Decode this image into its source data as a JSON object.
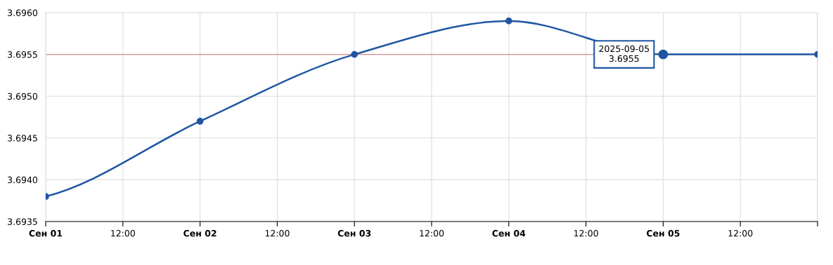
{
  "chart_data": {
    "type": "line",
    "x": [
      "2025-09-01",
      "2025-09-02",
      "2025-09-03",
      "2025-09-04",
      "2025-09-05",
      "2025-09-06"
    ],
    "series": [
      {
        "color": "#1f56a3",
        "values": [
          3.6938,
          3.6947,
          3.6955,
          3.6959,
          3.6955,
          3.6955
        ]
      }
    ],
    "xlim": [
      "2025-09-01",
      "2025-09-06"
    ],
    "xticks": [
      {
        "value": "2025-09-01",
        "label": "Сен 01"
      },
      {
        "value": "2025-09-01T12:00",
        "label": "12:00"
      },
      {
        "value": "2025-09-02",
        "label": "Сен 02"
      },
      {
        "value": "2025-09-02T12:00",
        "label": "12:00"
      },
      {
        "value": "2025-09-03",
        "label": "Сен 03"
      },
      {
        "value": "2025-09-03T12:00",
        "label": "12:00"
      },
      {
        "value": "2025-09-04",
        "label": "Сен 04"
      },
      {
        "value": "2025-09-04T12:00",
        "label": "12:00"
      },
      {
        "value": "2025-09-05",
        "label": "Сен 05"
      },
      {
        "value": "2025-09-05T12:00",
        "label": "12:00"
      },
      {
        "value": "2025-09-06",
        "label": null
      }
    ],
    "ylim": [
      3.6935,
      3.696
    ],
    "yticks": [
      {
        "value": 3.6935,
        "label": "3.6935"
      },
      {
        "value": 3.694,
        "label": "3.6940"
      },
      {
        "value": 3.6945,
        "label": "3.6945"
      },
      {
        "value": 3.695,
        "label": "3.6950"
      },
      {
        "value": 3.6955,
        "label": "3.6955"
      },
      {
        "value": 3.696,
        "label": "3.6960"
      }
    ],
    "ref_lines": [
      {
        "axis": "y",
        "value": 3.6955,
        "color": "#d98c8c"
      }
    ],
    "annotations": [
      {
        "text": "2025-09-05\n3.6955",
        "x": "2025-09-05",
        "y": 3.6955
      }
    ],
    "grid": true,
    "marker": "circle",
    "line_style": "solid",
    "legend": false
  }
}
